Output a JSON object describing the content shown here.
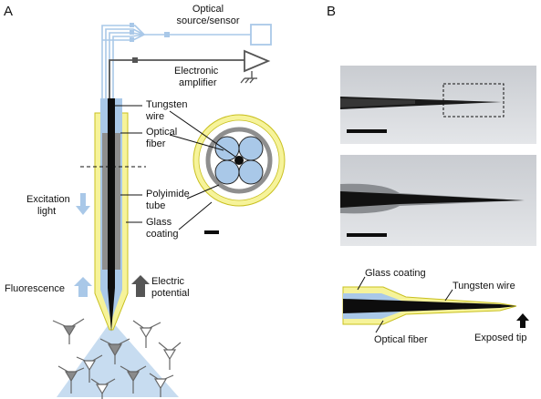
{
  "panels": {
    "a": "A",
    "b": "B"
  },
  "labels": {
    "optical_source_line1": "Optical",
    "optical_source_line2": "source/sensor",
    "electronic_line1": "Electronic",
    "electronic_line2": "amplifier",
    "tungsten_line1": "Tungsten",
    "tungsten_line2": "wire",
    "optical_fiber_line1": "Optical",
    "optical_fiber_line2": "fiber",
    "polyimide_line1": "Polyimide",
    "polyimide_line2": "tube",
    "glass_line1": "Glass",
    "glass_line2": "coating",
    "excitation_line1": "Excitation",
    "excitation_line2": "light",
    "fluorescence": "Fluorescence",
    "electric_line1": "Electric",
    "electric_line2": "potential",
    "b_glass_coating": "Glass coating",
    "b_tungsten_wire": "Tungsten wire",
    "b_optical_fiber": "Optical fiber",
    "b_exposed_tip": "Exposed tip"
  },
  "colors": {
    "fiber_blue": "#a9c8e8",
    "light_blue": "#c7dcf0",
    "glass_yellow": "#f6f39a",
    "glass_edge": "#c9c020",
    "polyimide_gray": "#8e8e8e",
    "wire_black": "#0d0d0d",
    "neuron_gray": "#7f7f7f"
  }
}
